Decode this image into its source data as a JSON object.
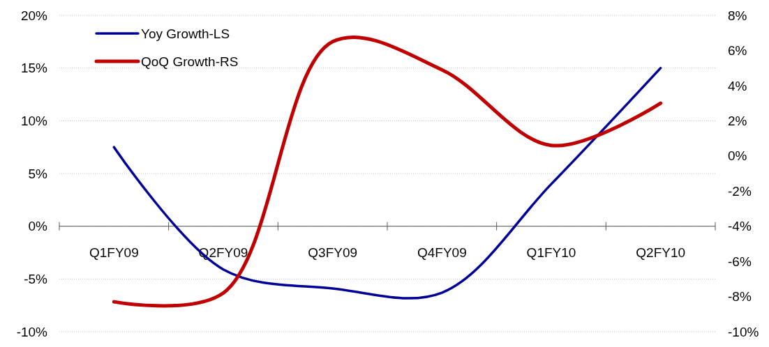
{
  "chart_data": {
    "type": "line",
    "categories": [
      "Q1FY09",
      "Q2FY09",
      "Q3FY09",
      "Q4FY09",
      "Q1FY10",
      "Q2FY10"
    ],
    "series": [
      {
        "name": "Yoy Growth-LS",
        "color": "#000099",
        "values": [
          7.5,
          -4.1,
          -5.9,
          -6.3,
          4.0,
          15.0
        ]
      },
      {
        "name": "QoQ Growth-RS",
        "color": "#c00000",
        "axis": "y2",
        "values": [
          -8.3,
          -7.8,
          6.5,
          4.9,
          0.6,
          3.0
        ]
      }
    ],
    "ylim": [
      -10,
      20
    ],
    "yticks": [
      {
        "value": -10,
        "label": "-10%"
      },
      {
        "value": -5,
        "label": "-5%"
      },
      {
        "value": 0,
        "label": "0%"
      },
      {
        "value": 5,
        "label": "5%"
      },
      {
        "value": 10,
        "label": "10%"
      },
      {
        "value": 15,
        "label": "15%"
      },
      {
        "value": 20,
        "label": "20%"
      }
    ],
    "y2lim": [
      -10,
      8
    ],
    "y2ticks": [
      {
        "value": -10,
        "label": "-10%"
      },
      {
        "value": -8,
        "label": "-8%"
      },
      {
        "value": -6,
        "label": "-6%"
      },
      {
        "value": -4,
        "label": "-4%"
      },
      {
        "value": -2,
        "label": "-2%"
      },
      {
        "value": 0,
        "label": "0%"
      },
      {
        "value": 2,
        "label": "2%"
      },
      {
        "value": 4,
        "label": "4%"
      },
      {
        "value": 6,
        "label": "6%"
      },
      {
        "value": 8,
        "label": "8%"
      }
    ],
    "grid": "y",
    "legend": "top left",
    "marker": "none",
    "line_style": "solid"
  }
}
